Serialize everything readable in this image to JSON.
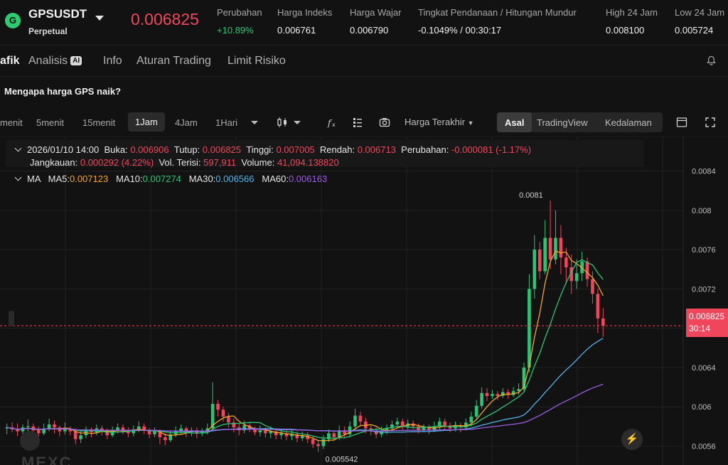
{
  "ticker": {
    "symbol": "GPSUSDT",
    "contract_type": "Perpetual",
    "last_price": "0.006825",
    "stats": [
      {
        "label": "Perubahan",
        "value": "+10.89%",
        "positive": true
      },
      {
        "label": "Harga Indeks",
        "value": "0.006761"
      },
      {
        "label": "Harga Wajar",
        "value": "0.006790"
      },
      {
        "label": "Tingkat Pendanaan / Hitungan Mundur",
        "value": "-0.1049% / 00:30:17"
      },
      {
        "label": "High 24 Jam",
        "value": "0.008100"
      },
      {
        "label": "Low 24 Jam",
        "value": "0.005724"
      }
    ]
  },
  "tabs": [
    "afik",
    "Analisis",
    "Info",
    "Aturan Trading",
    "Limit Risiko"
  ],
  "ai_badge": "AI",
  "question": "Mengapa harga GPS naik?",
  "toolbar": {
    "timeframes": [
      "menit",
      "5menit",
      "15menit",
      "1Jam",
      "4Jam",
      "1Hari"
    ],
    "active_timeframe": "1Jam",
    "price_type": "Harga Terakhir",
    "views": [
      "Asal",
      "TradingView",
      "Kedalaman"
    ],
    "active_view": "Asal"
  },
  "legend": {
    "datetime": "2026/01/10 14:00",
    "open_label": "Buka:",
    "open": "0.006906",
    "close_label": "Tutup:",
    "close": "0.006825",
    "high_label": "Tinggi:",
    "high": "0.007005",
    "low_label": "Rendah:",
    "low": "0.006713",
    "change_label": "Perubahan:",
    "change": "-0.000081 (-1.17%)",
    "range_label": "Jangkauan:",
    "range": "0.000292 (4.22%)",
    "filled_label": "Vol. Terisi:",
    "filled": "597,911",
    "volume_label": "Volume:",
    "volume": "41,094.138820"
  },
  "ma": {
    "label": "MA",
    "items": [
      {
        "name": "MA5:",
        "value": "0.007123",
        "color": "#f5a623"
      },
      {
        "name": "MA10:",
        "value": "0.007274",
        "color": "#2bc476"
      },
      {
        "name": "MA30:",
        "value": "0.006566",
        "color": "#4fb3e8"
      },
      {
        "name": "MA60:",
        "value": "0.006163",
        "color": "#9b5de5"
      }
    ]
  },
  "colors": {
    "up": "#2bc476",
    "down": "#f0465c",
    "grid": "#222222",
    "axis_text": "#bdbdbd"
  },
  "price_tag": {
    "price": "0.006825",
    "countdown": "30:14"
  },
  "watermark": "MEXC",
  "chart_data": {
    "type": "candlestick",
    "y_axis_ticks": [
      "0.0084",
      "0.008",
      "0.0076",
      "0.0072",
      "0.0068",
      "0.0064",
      "0.006",
      "0.0056"
    ],
    "ylim": [
      0.0054,
      0.0086
    ],
    "high_marker": "0.0081",
    "low_marker": "0.005542",
    "current_price": 0.006825,
    "candles": [
      [
        0.00578,
        0.00579,
        0.00572,
        0.00583
      ],
      [
        0.00579,
        0.00577,
        0.00574,
        0.00584
      ],
      [
        0.00577,
        0.00575,
        0.0057,
        0.00583
      ],
      [
        0.00575,
        0.00579,
        0.00572,
        0.00582
      ],
      [
        0.00579,
        0.0058,
        0.00574,
        0.00587
      ],
      [
        0.0058,
        0.00576,
        0.00571,
        0.00583
      ],
      [
        0.00576,
        0.00573,
        0.00569,
        0.0058
      ],
      [
        0.00573,
        0.00578,
        0.00571,
        0.00583
      ],
      [
        0.00578,
        0.00582,
        0.00575,
        0.00588
      ],
      [
        0.00582,
        0.00579,
        0.00573,
        0.00586
      ],
      [
        0.00579,
        0.00575,
        0.0057,
        0.00581
      ],
      [
        0.00575,
        0.00578,
        0.00572,
        0.00584
      ],
      [
        0.00578,
        0.00575,
        0.00571,
        0.0058
      ],
      [
        0.00575,
        0.00567,
        0.00562,
        0.00578
      ],
      [
        0.00567,
        0.00571,
        0.00563,
        0.00575
      ],
      [
        0.00571,
        0.00577,
        0.00568,
        0.0058
      ],
      [
        0.00577,
        0.00574,
        0.00569,
        0.00579
      ],
      [
        0.00574,
        0.00578,
        0.00571,
        0.00582
      ],
      [
        0.00578,
        0.00575,
        0.00571,
        0.00581
      ],
      [
        0.00575,
        0.00571,
        0.00567,
        0.00578
      ],
      [
        0.00571,
        0.00576,
        0.00569,
        0.0058
      ],
      [
        0.00576,
        0.00579,
        0.00573,
        0.00583
      ],
      [
        0.00579,
        0.00576,
        0.00572,
        0.00582
      ],
      [
        0.00576,
        0.00573,
        0.00569,
        0.00579
      ],
      [
        0.00573,
        0.00577,
        0.0057,
        0.00581
      ],
      [
        0.00577,
        0.0058,
        0.00574,
        0.00585
      ],
      [
        0.0058,
        0.00576,
        0.00572,
        0.00583
      ],
      [
        0.00576,
        0.00572,
        0.00568,
        0.00578
      ],
      [
        0.00572,
        0.00575,
        0.00569,
        0.00579
      ],
      [
        0.00575,
        0.00569,
        0.00562,
        0.00577
      ],
      [
        0.00569,
        0.00566,
        0.00561,
        0.00573
      ],
      [
        0.00566,
        0.00572,
        0.00564,
        0.00575
      ],
      [
        0.00572,
        0.00575,
        0.00569,
        0.0058
      ],
      [
        0.00575,
        0.00578,
        0.00572,
        0.00582
      ],
      [
        0.00578,
        0.00574,
        0.00569,
        0.0058
      ],
      [
        0.00574,
        0.00576,
        0.0057,
        0.00579
      ],
      [
        0.00576,
        0.00573,
        0.00568,
        0.00579
      ],
      [
        0.00573,
        0.00575,
        0.0057,
        0.00578
      ],
      [
        0.00575,
        0.00578,
        0.00572,
        0.00583
      ],
      [
        0.00578,
        0.00603,
        0.00576,
        0.00625
      ],
      [
        0.00603,
        0.00597,
        0.0059,
        0.00607
      ],
      [
        0.00597,
        0.0059,
        0.00585,
        0.006
      ],
      [
        0.0059,
        0.00584,
        0.00579,
        0.00594
      ],
      [
        0.00584,
        0.00579,
        0.00574,
        0.00588
      ],
      [
        0.00579,
        0.00576,
        0.00571,
        0.00583
      ],
      [
        0.00576,
        0.00581,
        0.00573,
        0.00586
      ],
      [
        0.00581,
        0.00578,
        0.00574,
        0.00584
      ],
      [
        0.00578,
        0.00574,
        0.00571,
        0.0058
      ],
      [
        0.00574,
        0.00576,
        0.0057,
        0.00581
      ],
      [
        0.00576,
        0.00573,
        0.00569,
        0.00579
      ],
      [
        0.00573,
        0.00575,
        0.00568,
        0.0058
      ],
      [
        0.00575,
        0.00571,
        0.00567,
        0.00578
      ],
      [
        0.00571,
        0.00573,
        0.00567,
        0.00577
      ],
      [
        0.00573,
        0.0057,
        0.00566,
        0.00576
      ],
      [
        0.0057,
        0.00572,
        0.00566,
        0.00577
      ],
      [
        0.00572,
        0.00568,
        0.00564,
        0.00575
      ],
      [
        0.00568,
        0.00571,
        0.00565,
        0.00575
      ],
      [
        0.00571,
        0.00567,
        0.00563,
        0.00574
      ],
      [
        0.00567,
        0.00562,
        0.00558,
        0.0057
      ],
      [
        0.00562,
        0.0056,
        0.00554,
        0.00566
      ],
      [
        0.0056,
        0.00567,
        0.00557,
        0.00571
      ],
      [
        0.00567,
        0.00573,
        0.00564,
        0.00577
      ],
      [
        0.00573,
        0.00569,
        0.00565,
        0.00576
      ],
      [
        0.00569,
        0.00576,
        0.00566,
        0.00581
      ],
      [
        0.00576,
        0.00572,
        0.00568,
        0.0058
      ],
      [
        0.00572,
        0.0058,
        0.0057,
        0.00585
      ],
      [
        0.0058,
        0.00591,
        0.00577,
        0.00598
      ],
      [
        0.00591,
        0.00585,
        0.0058,
        0.00595
      ],
      [
        0.00585,
        0.00578,
        0.00573,
        0.00589
      ],
      [
        0.00578,
        0.00575,
        0.00571,
        0.00581
      ],
      [
        0.00575,
        0.00572,
        0.00568,
        0.00579
      ],
      [
        0.00572,
        0.00575,
        0.00569,
        0.0058
      ],
      [
        0.00575,
        0.00578,
        0.00572,
        0.00582
      ],
      [
        0.00578,
        0.00582,
        0.00575,
        0.00586
      ],
      [
        0.00582,
        0.00585,
        0.00578,
        0.00589
      ],
      [
        0.00585,
        0.0058,
        0.00576,
        0.00588
      ],
      [
        0.0058,
        0.00583,
        0.00577,
        0.00587
      ],
      [
        0.00583,
        0.0058,
        0.00577,
        0.00586
      ],
      [
        0.0058,
        0.00576,
        0.00573,
        0.00583
      ],
      [
        0.00576,
        0.00579,
        0.00574,
        0.00582
      ],
      [
        0.00579,
        0.00576,
        0.00572,
        0.00582
      ],
      [
        0.00576,
        0.0058,
        0.00574,
        0.00585
      ],
      [
        0.0058,
        0.00585,
        0.00577,
        0.00589
      ],
      [
        0.00585,
        0.00581,
        0.00577,
        0.00588
      ],
      [
        0.00581,
        0.00578,
        0.00574,
        0.00584
      ],
      [
        0.00578,
        0.00581,
        0.00575,
        0.00585
      ],
      [
        0.00581,
        0.00579,
        0.00574,
        0.00584
      ],
      [
        0.00579,
        0.00584,
        0.00576,
        0.00588
      ],
      [
        0.00584,
        0.0059,
        0.0058,
        0.00595
      ],
      [
        0.0059,
        0.00601,
        0.00587,
        0.00607
      ],
      [
        0.00601,
        0.00614,
        0.00598,
        0.0062
      ],
      [
        0.00614,
        0.00611,
        0.00606,
        0.00619
      ],
      [
        0.00611,
        0.00613,
        0.00608,
        0.00617
      ],
      [
        0.00613,
        0.00611,
        0.00607,
        0.00616
      ],
      [
        0.00611,
        0.00615,
        0.00609,
        0.00619
      ],
      [
        0.00615,
        0.00612,
        0.00608,
        0.00618
      ],
      [
        0.00612,
        0.00616,
        0.0061,
        0.0062
      ],
      [
        0.00616,
        0.00618,
        0.00612,
        0.00624
      ],
      [
        0.00618,
        0.0064,
        0.00615,
        0.00645
      ],
      [
        0.0064,
        0.0072,
        0.00635,
        0.00735
      ],
      [
        0.0072,
        0.0076,
        0.0071,
        0.00775
      ],
      [
        0.0076,
        0.00738,
        0.0073,
        0.00768
      ],
      [
        0.00738,
        0.00772,
        0.00735,
        0.0079
      ],
      [
        0.00772,
        0.0075,
        0.0074,
        0.0081
      ],
      [
        0.0075,
        0.00772,
        0.00745,
        0.008
      ],
      [
        0.00772,
        0.00752,
        0.00735,
        0.00785
      ],
      [
        0.00752,
        0.00742,
        0.00725,
        0.00762
      ],
      [
        0.00742,
        0.00728,
        0.00715,
        0.00755
      ],
      [
        0.00728,
        0.00736,
        0.0072,
        0.0075
      ],
      [
        0.00736,
        0.00748,
        0.00728,
        0.00758
      ],
      [
        0.00748,
        0.0073,
        0.00722,
        0.00752
      ],
      [
        0.0073,
        0.00715,
        0.00705,
        0.00738
      ],
      [
        0.00715,
        0.0069,
        0.00675,
        0.0072
      ],
      [
        0.0069,
        0.006825,
        0.006713,
        0.007005
      ]
    ]
  }
}
